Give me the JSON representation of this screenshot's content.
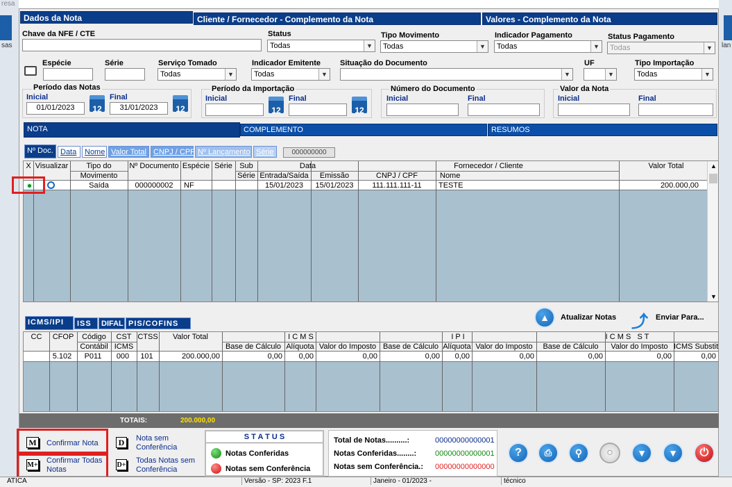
{
  "top_fragment": "resa",
  "left_fragment": "sas",
  "right_fragment": "lan",
  "sections": {
    "dados": "Dados da Nota",
    "cliente": "Cliente / Fornecedor - Complemento da Nota",
    "valores": "Valores - Complemento da Nota"
  },
  "filters": {
    "chave_label": "Chave da NFE / CTE",
    "status_label": "Status",
    "status_value": "Todas",
    "tipo_mov_label": "Tipo Movimento",
    "tipo_mov_value": "Todas",
    "ind_pag_label": "Indicador Pagamento",
    "ind_pag_value": "Todas",
    "status_pag_label": "Status Pagamento",
    "status_pag_value": "Todas",
    "especie_label": "Espécie",
    "serie_label": "Série",
    "servico_label": "Serviço Tomado",
    "servico_value": "Todas",
    "ind_emit_label": "Indicador Emitente",
    "ind_emit_value": "Todas",
    "situacao_label": "Situação do Documento",
    "uf_label": "UF",
    "tipo_imp_label": "Tipo Importação",
    "tipo_imp_value": "Todas",
    "periodo_notas_label": "Período das Notas",
    "inicial_label": "Inicial",
    "final_label": "Final",
    "periodo_inicial": "01/01/2023",
    "periodo_final": "31/01/2023",
    "periodo_imp_label": "Período da Importação",
    "numero_doc_label": "Número do Documento",
    "valor_nota_label": "Valor da Nota",
    "cal_day": "12"
  },
  "main_tabs": [
    "NOTA",
    "COMPLEMENTO",
    "RESUMOS"
  ],
  "sort_tabs": [
    "Nº Doc.",
    "Data",
    "Nome",
    "Valor Total",
    "CNPJ / CPF",
    "Nº Lançamento",
    "Série"
  ],
  "search_box": "000000000",
  "notes_table": {
    "headers_top": [
      "X",
      "Visualizar",
      "Tipo do",
      "Nº Documento",
      "Espécie",
      "Série",
      "Sub",
      "Data",
      "Fornecedor / Cliente",
      "Valor Total"
    ],
    "headers_bottom": [
      "Movimento",
      "Série",
      "Entrada/Saída",
      "Emissão",
      "CNPJ / CPF",
      "Nome"
    ],
    "row": {
      "tipo": "Saída",
      "numero": "000000002",
      "especie": "NF",
      "entrada": "15/01/2023",
      "emissao": "15/01/2023",
      "cnpj": "111.111.111-11",
      "nome": "TESTE",
      "valor": "200.000,00"
    }
  },
  "tax_tabs": [
    "ICMS/IPI",
    "ISS",
    "DIFAL",
    "PIS/COFINS"
  ],
  "actions": {
    "atualizar": "Atualizar Notas",
    "enviar": "Enviar Para..."
  },
  "tax_table": {
    "headers_top": [
      "CC",
      "CFOP",
      "Código",
      "CST",
      "CTSS",
      "Valor Total",
      "I C M S",
      "I P I",
      "I C M S   S T"
    ],
    "headers_bottom": [
      "Contábil",
      "ICMS",
      "Base de Cálculo",
      "Alíquota",
      "Valor do Imposto",
      "Base de Cálculo",
      "Alíquota",
      "Valor do Imposto",
      "Base de Cálculo",
      "Valor do Imposto",
      "ICMS Substit"
    ],
    "row": [
      "5.102",
      "P011",
      "000",
      "101",
      "200.000,00",
      "0,00",
      "0,00",
      "0,00",
      "0,00",
      "0,00",
      "0,00",
      "0,00",
      "0,00",
      "0,00"
    ]
  },
  "totals": {
    "label": "TOTAIS:",
    "value": "200.000,00"
  },
  "buttons": {
    "confirmar": "Confirmar Nota",
    "confirmar_todas": "Confirmar Todas Notas",
    "nota_sem": "Nota sem Conferência",
    "todas_sem": "Todas Notas sem Conferência",
    "icon_m": "M",
    "icon_mplus": "M+",
    "icon_d": "D",
    "icon_dplus": "D+"
  },
  "status_panel": {
    "title": "S T A T U S",
    "conferidas": "Notas Conferidas",
    "sem": "Notas sem Conferência"
  },
  "counts": {
    "total_label": "Total de Notas..........:",
    "total_value": "00000000000001",
    "conf_label": "Notas Conferidas........:",
    "conf_value": "00000000000001",
    "sem_label": "Notas sem Conferência.:",
    "sem_value": "00000000000000"
  },
  "statusbar": [
    "ATICA",
    "Versão - SP: 2023 F.1",
    "Janeiro - 01/2023 -",
    "técnico"
  ],
  "colors": {
    "header": "#0a3d8a",
    "grid_bg": "#a9c0cf",
    "sel_tab": "#0a3d8a",
    "light_tab": "#6fa2e6",
    "red": "#e02020"
  }
}
